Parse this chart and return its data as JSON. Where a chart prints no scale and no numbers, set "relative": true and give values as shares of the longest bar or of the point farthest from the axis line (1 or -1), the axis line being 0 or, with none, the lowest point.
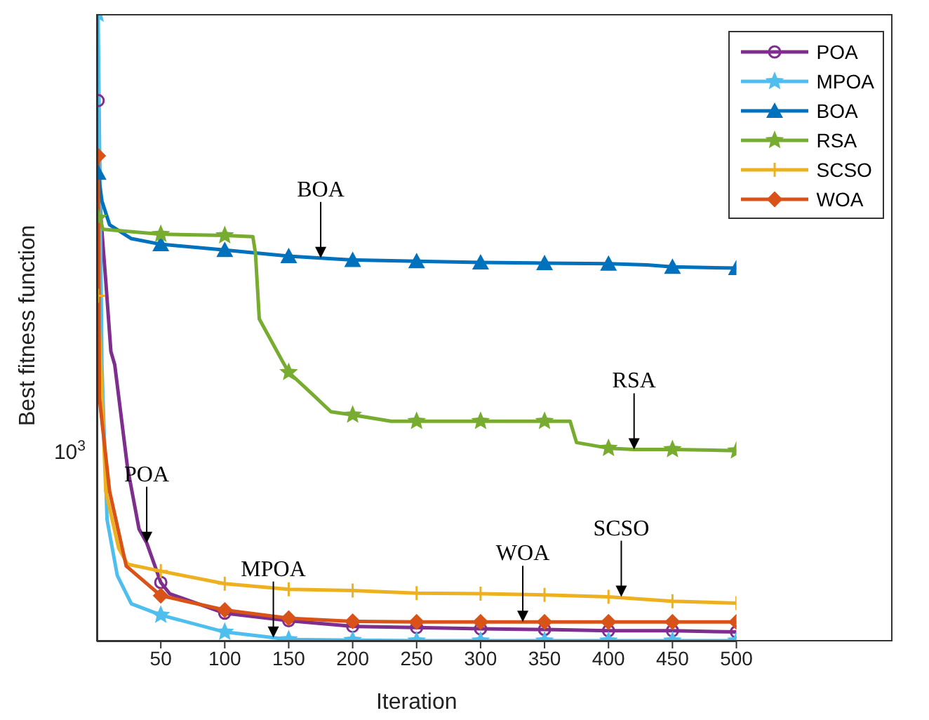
{
  "chart_data": {
    "type": "line",
    "relative": true,
    "xlabel": "Iteration",
    "ylabel": "Best fitness function",
    "xlim": [
      0,
      500
    ],
    "xticks": [
      50,
      100,
      150,
      200,
      250,
      300,
      350,
      400,
      450,
      500
    ],
    "grid": false,
    "legend": "top right",
    "line_style": "solid",
    "series": [
      {
        "name": "POA",
        "color": "#7e2f8e",
        "marker": "circle",
        "x": [
          1,
          3,
          7,
          11,
          14,
          24,
          33,
          39,
          50,
          57,
          100,
          150,
          200,
          250,
          300,
          350,
          400,
          450,
          500
        ],
        "values": [
          0.862,
          0.68,
          0.574,
          0.462,
          0.441,
          0.277,
          0.179,
          0.157,
          0.094,
          0.076,
          0.045,
          0.033,
          0.024,
          0.022,
          0.02,
          0.019,
          0.017,
          0.017,
          0.015
        ]
      },
      {
        "name": "MPOA",
        "color": "#4dbeee",
        "marker": "star",
        "x": [
          1,
          4,
          8,
          16,
          27,
          50,
          100,
          150,
          200,
          250,
          300,
          350,
          400,
          450,
          500
        ],
        "values": [
          1.0,
          0.438,
          0.194,
          0.105,
          0.06,
          0.042,
          0.015,
          0.003,
          0.002,
          0.001,
          0.001,
          0.001,
          0.001,
          0.001,
          0.001
        ]
      },
      {
        "name": "BOA",
        "color": "#0072bd",
        "marker": "triangle",
        "x": [
          1,
          4,
          10,
          27,
          50,
          100,
          150,
          200,
          250,
          300,
          350,
          400,
          430,
          450,
          500
        ],
        "values": [
          0.747,
          0.702,
          0.664,
          0.642,
          0.633,
          0.624,
          0.614,
          0.608,
          0.606,
          0.604,
          0.603,
          0.602,
          0.6,
          0.597,
          0.595
        ]
      },
      {
        "name": "RSA",
        "color": "#77ac30",
        "marker": "star",
        "x": [
          1,
          5,
          50,
          100,
          122,
          124,
          127,
          145,
          150,
          168,
          183,
          200,
          230,
          250,
          300,
          350,
          370,
          375,
          400,
          420,
          450,
          500
        ],
        "values": [
          0.675,
          0.657,
          0.649,
          0.647,
          0.645,
          0.619,
          0.514,
          0.447,
          0.429,
          0.395,
          0.366,
          0.361,
          0.351,
          0.351,
          0.351,
          0.351,
          0.351,
          0.317,
          0.308,
          0.306,
          0.306,
          0.304
        ]
      },
      {
        "name": "SCSO",
        "color": "#edb120",
        "marker": "cross",
        "x": [
          1,
          7,
          17,
          24,
          50,
          100,
          150,
          200,
          250,
          300,
          350,
          400,
          450,
          500
        ],
        "values": [
          0.551,
          0.239,
          0.149,
          0.123,
          0.112,
          0.092,
          0.083,
          0.081,
          0.077,
          0.076,
          0.074,
          0.071,
          0.064,
          0.061
        ]
      },
      {
        "name": "WOA",
        "color": "#d95319",
        "marker": "diamond",
        "x": [
          1,
          2,
          10,
          23,
          50,
          100,
          150,
          200,
          250,
          300,
          350,
          400,
          450,
          500
        ],
        "values": [
          0.774,
          0.388,
          0.239,
          0.12,
          0.073,
          0.05,
          0.037,
          0.032,
          0.031,
          0.031,
          0.031,
          0.031,
          0.031,
          0.031
        ]
      }
    ],
    "annotations": [
      {
        "text": "BOA",
        "x": 175,
        "y": 0.611
      },
      {
        "text": "RSA",
        "x": 420,
        "y": 0.306
      },
      {
        "text": "POA",
        "x": 39,
        "y": 0.157
      },
      {
        "text": "MPOA",
        "x": 138,
        "y": 0.006
      },
      {
        "text": "WOA",
        "x": 333,
        "y": 0.031
      },
      {
        "text": "SCSO",
        "x": 410,
        "y": 0.071
      },
      "10$^{3}$"
    ]
  }
}
